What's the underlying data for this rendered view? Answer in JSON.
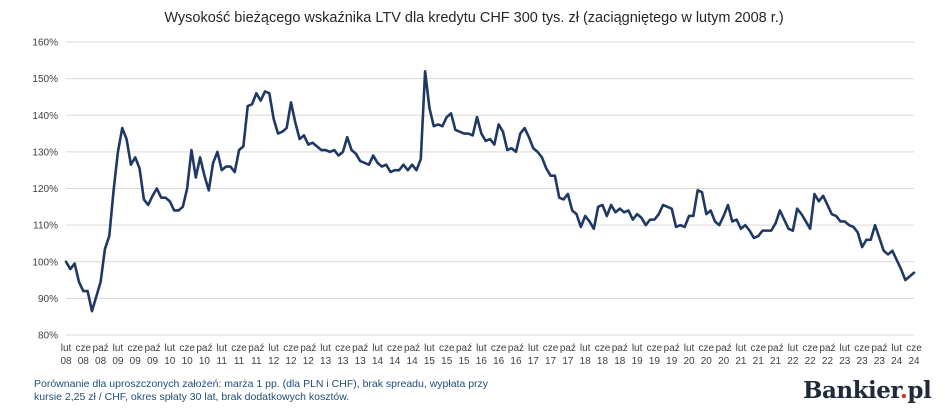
{
  "chart_data": {
    "type": "line",
    "title": "Wysokość bieżącego wskaźnika LTV dla kredytu CHF 300 tys. zł (zaciągniętego w lutym 2008 r.)",
    "xlabel": "",
    "ylabel": "",
    "ylim": [
      0.8,
      1.6
    ],
    "y_ticks": [
      "80%",
      "90%",
      "100%",
      "110%",
      "120%",
      "130%",
      "140%",
      "150%",
      "160%"
    ],
    "grid": true,
    "legend": "none",
    "x_tick_labels": [
      [
        "lut",
        "08"
      ],
      [
        "cze",
        "08"
      ],
      [
        "paź",
        "08"
      ],
      [
        "lut",
        "09"
      ],
      [
        "cze",
        "09"
      ],
      [
        "paź",
        "09"
      ],
      [
        "lut",
        "10"
      ],
      [
        "cze",
        "10"
      ],
      [
        "paź",
        "10"
      ],
      [
        "lut",
        "11"
      ],
      [
        "cze",
        "11"
      ],
      [
        "paź",
        "11"
      ],
      [
        "lut",
        "12"
      ],
      [
        "cze",
        "12"
      ],
      [
        "paź",
        "12"
      ],
      [
        "lut",
        "13"
      ],
      [
        "cze",
        "13"
      ],
      [
        "paź",
        "13"
      ],
      [
        "lut",
        "14"
      ],
      [
        "cze",
        "14"
      ],
      [
        "paź",
        "14"
      ],
      [
        "lut",
        "15"
      ],
      [
        "cze",
        "15"
      ],
      [
        "paź",
        "15"
      ],
      [
        "lut",
        "16"
      ],
      [
        "cze",
        "16"
      ],
      [
        "paź",
        "16"
      ],
      [
        "lut",
        "17"
      ],
      [
        "cze",
        "17"
      ],
      [
        "paź",
        "17"
      ],
      [
        "lut",
        "18"
      ],
      [
        "cze",
        "18"
      ],
      [
        "paź",
        "18"
      ],
      [
        "lut",
        "19"
      ],
      [
        "cze",
        "19"
      ],
      [
        "paź",
        "19"
      ],
      [
        "lut",
        "20"
      ],
      [
        "cze",
        "20"
      ],
      [
        "paź",
        "20"
      ],
      [
        "lut",
        "21"
      ],
      [
        "cze",
        "21"
      ],
      [
        "paź",
        "21"
      ],
      [
        "lut",
        "22"
      ],
      [
        "cze",
        "22"
      ],
      [
        "paź",
        "22"
      ],
      [
        "lut",
        "23"
      ],
      [
        "cze",
        "23"
      ],
      [
        "paź",
        "23"
      ],
      [
        "lut",
        "24"
      ],
      [
        "cze",
        "24"
      ]
    ],
    "series": [
      {
        "name": "LTV",
        "color": "#1f3864",
        "values": [
          1.0,
          0.98,
          0.995,
          0.945,
          0.92,
          0.92,
          0.865,
          0.905,
          0.945,
          1.035,
          1.07,
          1.195,
          1.3,
          1.365,
          1.335,
          1.265,
          1.285,
          1.255,
          1.17,
          1.155,
          1.18,
          1.2,
          1.175,
          1.175,
          1.165,
          1.14,
          1.14,
          1.15,
          1.2,
          1.305,
          1.23,
          1.285,
          1.235,
          1.195,
          1.27,
          1.3,
          1.25,
          1.26,
          1.26,
          1.245,
          1.305,
          1.315,
          1.425,
          1.43,
          1.46,
          1.44,
          1.465,
          1.46,
          1.39,
          1.35,
          1.355,
          1.365,
          1.435,
          1.38,
          1.335,
          1.345,
          1.32,
          1.325,
          1.315,
          1.305,
          1.305,
          1.3,
          1.305,
          1.29,
          1.3,
          1.34,
          1.305,
          1.295,
          1.275,
          1.27,
          1.265,
          1.29,
          1.27,
          1.26,
          1.265,
          1.245,
          1.25,
          1.25,
          1.265,
          1.25,
          1.265,
          1.25,
          1.28,
          1.52,
          1.42,
          1.37,
          1.375,
          1.37,
          1.395,
          1.405,
          1.36,
          1.355,
          1.35,
          1.35,
          1.345,
          1.395,
          1.35,
          1.33,
          1.335,
          1.32,
          1.375,
          1.355,
          1.305,
          1.31,
          1.3,
          1.35,
          1.365,
          1.34,
          1.31,
          1.3,
          1.285,
          1.255,
          1.235,
          1.235,
          1.175,
          1.17,
          1.185,
          1.14,
          1.13,
          1.095,
          1.125,
          1.11,
          1.09,
          1.15,
          1.155,
          1.125,
          1.155,
          1.135,
          1.145,
          1.135,
          1.14,
          1.115,
          1.13,
          1.12,
          1.1,
          1.115,
          1.115,
          1.13,
          1.155,
          1.15,
          1.145,
          1.095,
          1.1,
          1.095,
          1.125,
          1.125,
          1.195,
          1.19,
          1.13,
          1.14,
          1.11,
          1.1,
          1.125,
          1.155,
          1.11,
          1.115,
          1.09,
          1.1,
          1.085,
          1.065,
          1.07,
          1.085,
          1.085,
          1.085,
          1.105,
          1.14,
          1.115,
          1.09,
          1.085,
          1.145,
          1.13,
          1.11,
          1.09,
          1.185,
          1.165,
          1.18,
          1.155,
          1.13,
          1.125,
          1.11,
          1.11,
          1.1,
          1.095,
          1.08,
          1.04,
          1.06,
          1.06,
          1.1,
          1.065,
          1.03,
          1.02,
          1.03,
          1.005,
          0.98,
          0.95,
          0.96,
          0.97
        ]
      }
    ]
  },
  "footnote": {
    "line1": "Porównanie dla uproszczonych założeń: marża 1 pp. (dla PLN i CHF), brak spreadu, wypłata przy",
    "line2": "kursie 2,25 zł / CHF, okres spłaty 30 lat, brak dodatkowych kosztów."
  },
  "brand": {
    "name": "Bankier",
    "dot": ".",
    "suffix": "pl"
  }
}
